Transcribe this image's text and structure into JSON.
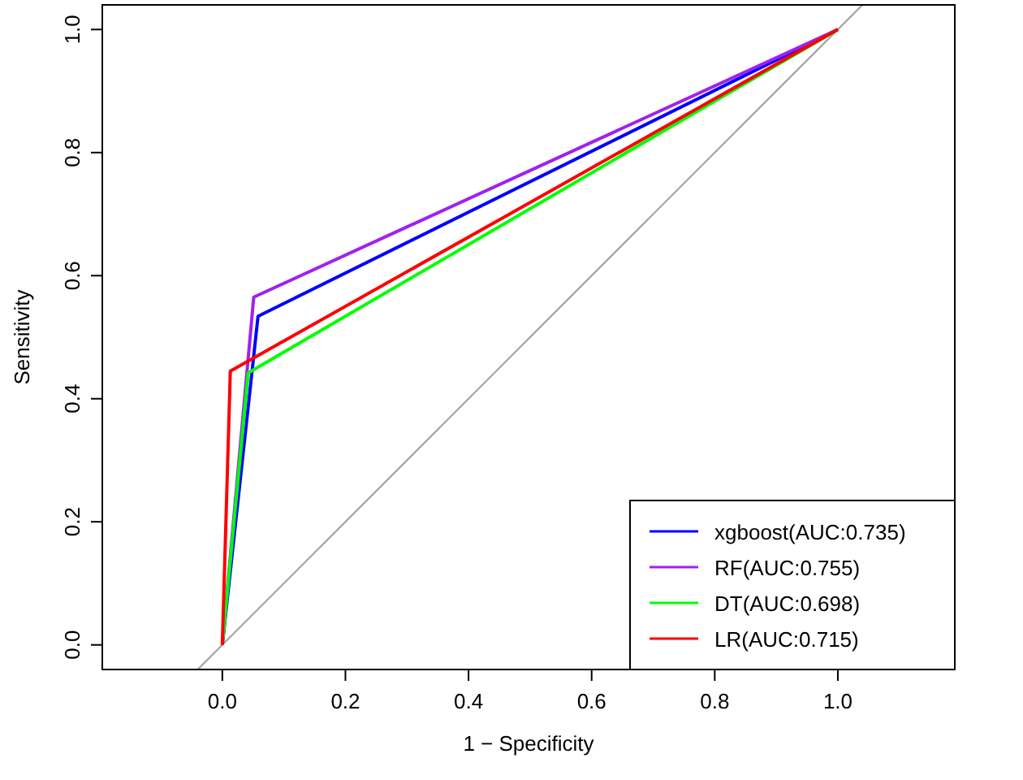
{
  "chart_data": {
    "type": "line",
    "xlabel": "1 − Specificity",
    "ylabel": "Sensitivity",
    "xlim": [
      -0.195,
      1.19
    ],
    "ylim": [
      -0.04,
      1.04
    ],
    "xticks": [
      {
        "value": 0,
        "label": "0.0"
      },
      0.2,
      0.4,
      0.6,
      0.8,
      {
        "value": 1,
        "label": "1.0"
      }
    ],
    "yticks": [
      {
        "value": 0,
        "label": "0.0"
      },
      0.2,
      0.4,
      0.6,
      0.8,
      {
        "value": 1,
        "label": "1.0"
      }
    ],
    "series": [
      {
        "color": "#a0a0a0",
        "x": [
          -0.04,
          1.04
        ],
        "values": [
          -0.04,
          1.04
        ]
      },
      {
        "name": "xgboost(AUC:0.735)",
        "color": "#0000ff",
        "x": [
          0,
          0.058,
          1
        ],
        "values": [
          0,
          0.534,
          1
        ]
      },
      {
        "name": "RF(AUC:0.755)",
        "color": "#a020f0",
        "x": [
          0,
          0.051,
          1
        ],
        "values": [
          0,
          0.565,
          1
        ]
      },
      {
        "name": "DT(AUC:0.698)",
        "color": "#00ff00",
        "x": [
          0,
          0.042,
          1
        ],
        "values": [
          0,
          0.442,
          1
        ]
      },
      {
        "name": "LR(AUC:0.715)",
        "color": "#ff0000",
        "x": [
          0,
          0.013,
          1
        ],
        "values": [
          0,
          0.445,
          1
        ]
      }
    ],
    "legend": "bottom right",
    "grid": false,
    "marker": "none",
    "line_style": "solid"
  }
}
